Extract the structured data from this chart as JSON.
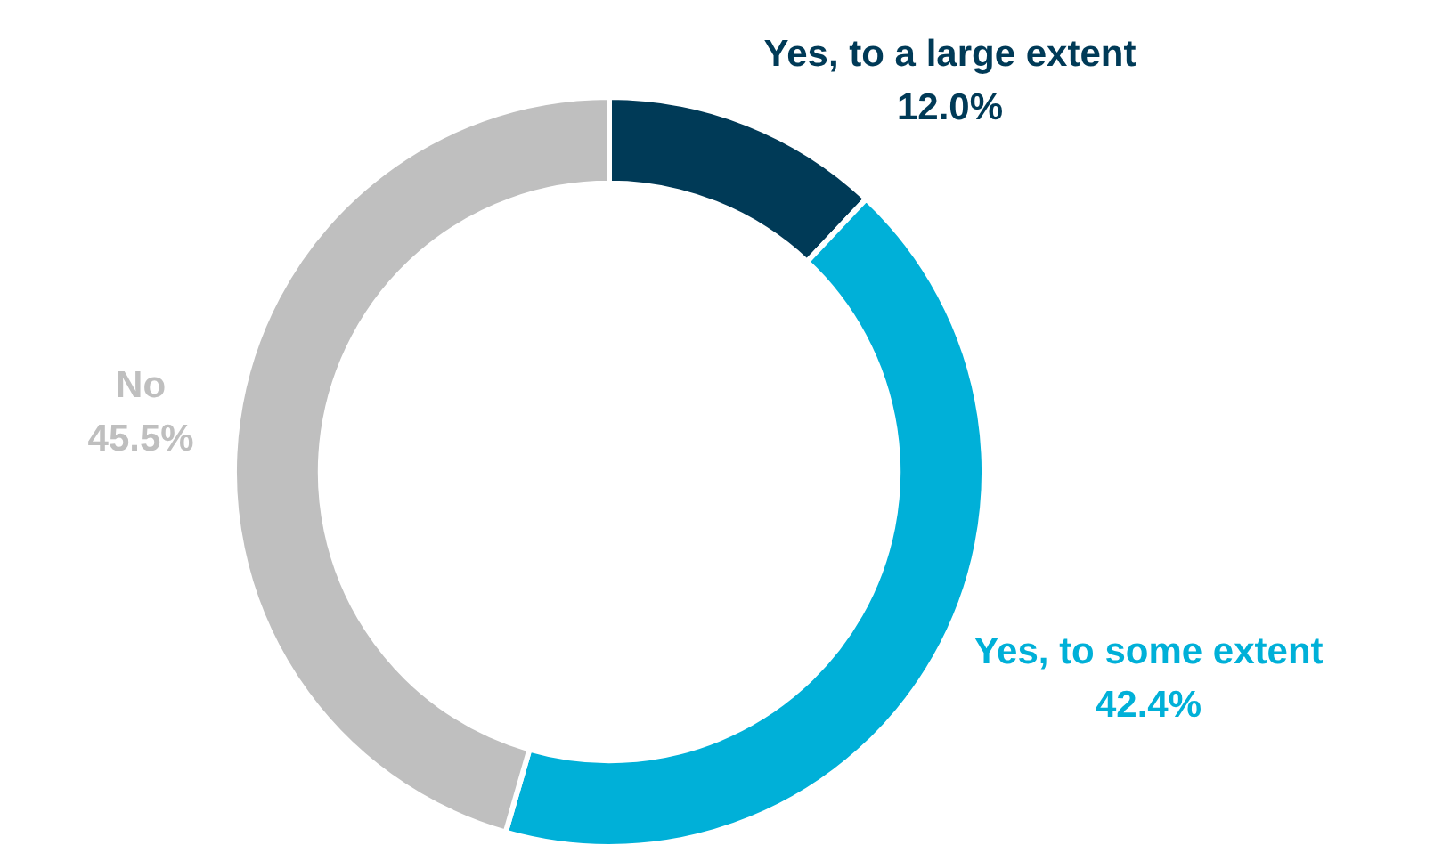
{
  "chart_data": {
    "type": "donut",
    "categories": [
      "Yes, to a large extent",
      "Yes, to some extent",
      "No"
    ],
    "values": [
      12.0,
      42.4,
      45.5
    ],
    "value_labels": [
      "12.0%",
      "42.4%",
      "45.5%"
    ],
    "colors": [
      "#003a57",
      "#00b0d8",
      "#bfbfbf"
    ],
    "legend": false
  }
}
